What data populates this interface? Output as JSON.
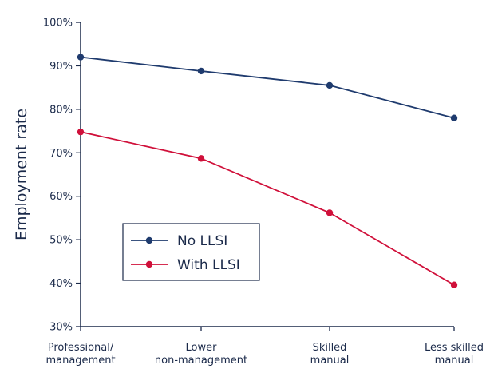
{
  "chart_data": {
    "type": "line",
    "title": "",
    "xlabel": "",
    "ylabel": "Employment rate",
    "categories": [
      [
        "Professional/",
        "management"
      ],
      [
        "Lower",
        "non-management"
      ],
      [
        "Skilled",
        "manual"
      ],
      [
        "Less skilled",
        "manual"
      ]
    ],
    "series": [
      {
        "name": "No LLSI",
        "color": "#1f3b6e",
        "values": [
          92,
          88.8,
          85.5,
          78
        ]
      },
      {
        "name": "With LLSI",
        "color": "#d0103a",
        "values": [
          74.8,
          68.7,
          56.2,
          39.6
        ]
      }
    ],
    "ylim": [
      30,
      100
    ],
    "yticks": [
      30,
      40,
      50,
      60,
      70,
      80,
      90,
      100
    ],
    "ytick_labels": [
      "30%",
      "40%",
      "50%",
      "60%",
      "70%",
      "80%",
      "90%",
      "100%"
    ],
    "grid": false,
    "legend_position": "bottom-left"
  }
}
